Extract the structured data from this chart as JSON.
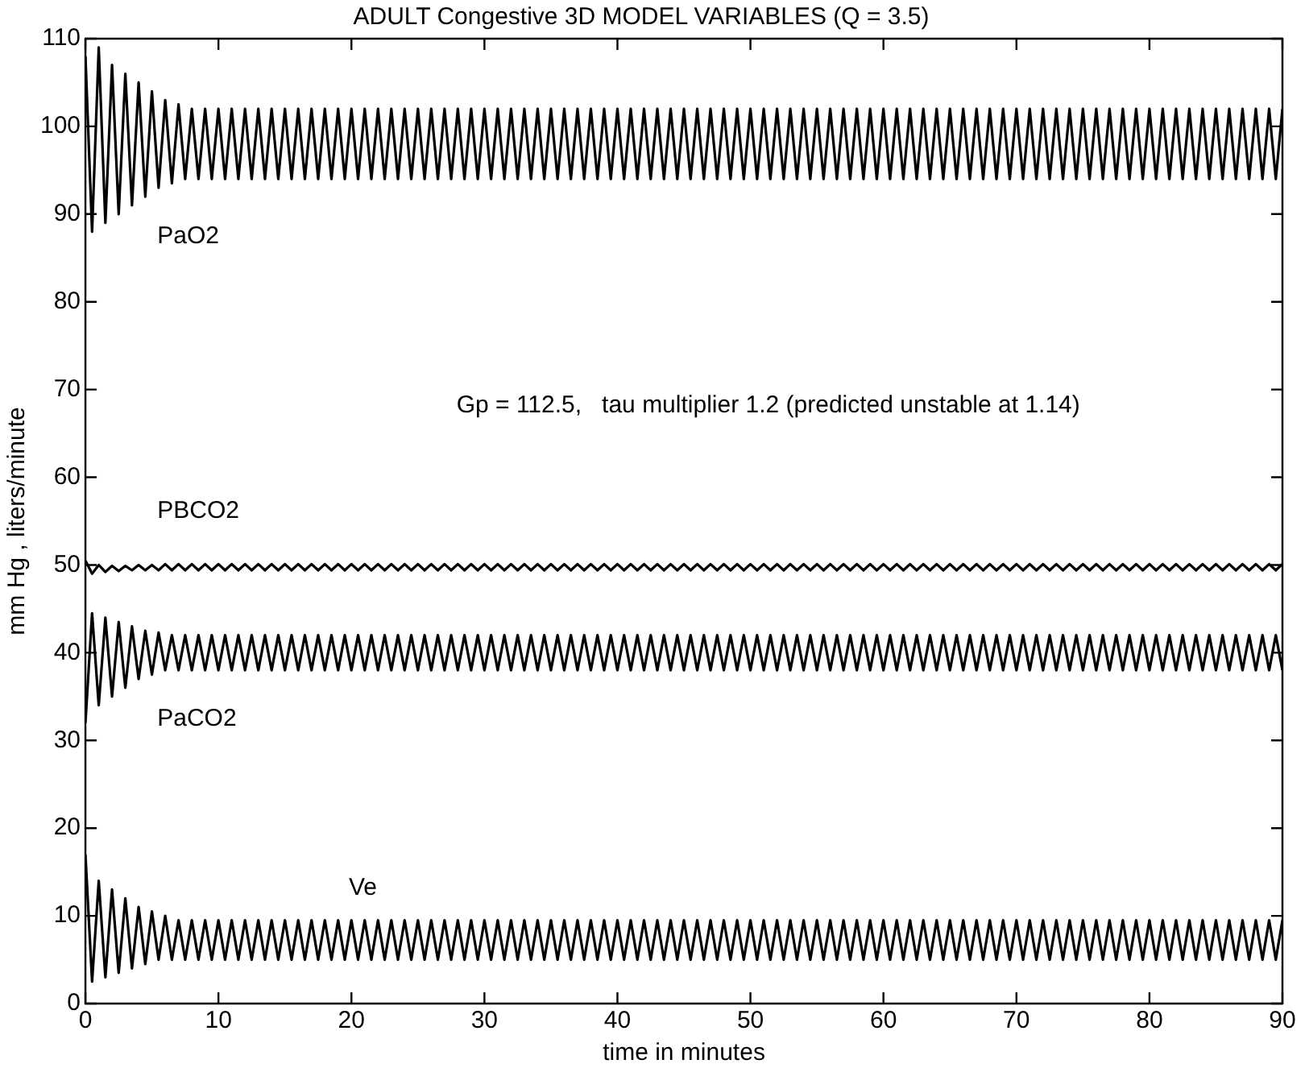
{
  "chart_data": {
    "type": "line",
    "title": "ADULT Congestive 3D MODEL VARIABLES (Q = 3.5)",
    "xlabel": "time in minutes",
    "ylabel": "mm Hg , liters/minute",
    "annotations": [
      "Gp = 112.5,   tau multiplier 1.2 (predicted unstable at 1.14)"
    ],
    "x": [
      0,
      0.5,
      1,
      1.5,
      2,
      2.5,
      3,
      3.5,
      4,
      4.5,
      5,
      5.5,
      6,
      6.5,
      7,
      7.5,
      8,
      8.5,
      9,
      9.5,
      10,
      10.5,
      11,
      11.5,
      12,
      12.5,
      13,
      13.5,
      14,
      14.5,
      15,
      15.5,
      16,
      16.5,
      17,
      17.5,
      18,
      18.5,
      19,
      19.5,
      20,
      20.5,
      21,
      21.5,
      22,
      22.5,
      23,
      23.5,
      24,
      24.5,
      25,
      25.5,
      26,
      26.5,
      27,
      27.5,
      28,
      28.5,
      29,
      29.5,
      30,
      30.5,
      31,
      31.5,
      32,
      32.5,
      33,
      33.5,
      34,
      34.5,
      35,
      35.5,
      36,
      36.5,
      37,
      37.5,
      38,
      38.5,
      39,
      39.5,
      40,
      40.5,
      41,
      41.5,
      42,
      42.5,
      43,
      43.5,
      44,
      44.5,
      45,
      45.5,
      46,
      46.5,
      47,
      47.5,
      48,
      48.5,
      49,
      49.5,
      50,
      50.5,
      51,
      51.5,
      52,
      52.5,
      53,
      53.5,
      54,
      54.5,
      55,
      55.5,
      56,
      56.5,
      57,
      57.5,
      58,
      58.5,
      59,
      59.5,
      60,
      60.5,
      61,
      61.5,
      62,
      62.5,
      63,
      63.5,
      64,
      64.5,
      65,
      65.5,
      66,
      66.5,
      67,
      67.5,
      68,
      68.5,
      69,
      69.5,
      70,
      70.5,
      71,
      71.5,
      72,
      72.5,
      73,
      73.5,
      74,
      74.5,
      75,
      75.5,
      76,
      76.5,
      77,
      77.5,
      78,
      78.5,
      79,
      79.5,
      80,
      80.5,
      81,
      81.5,
      82,
      82.5,
      83,
      83.5,
      84,
      84.5,
      85,
      85.5,
      86,
      86.5,
      87,
      87.5,
      88,
      88.5,
      89,
      89.5,
      90
    ],
    "series": [
      {
        "name": "PaO2",
        "color": "#000000",
        "values": [
          108,
          88,
          109,
          89,
          107,
          90,
          106,
          91,
          105,
          92,
          104,
          93,
          103,
          93.5,
          102.5,
          94,
          102,
          94,
          102,
          94,
          102,
          94,
          102,
          94,
          102,
          94,
          102,
          94,
          102,
          94,
          102,
          94,
          102,
          94,
          102,
          94,
          102,
          94,
          102,
          94,
          102,
          94,
          102,
          94,
          102,
          94,
          102,
          94,
          102,
          94,
          102,
          94,
          102,
          94,
          102,
          94,
          102,
          94,
          102,
          94,
          102,
          94,
          102,
          94,
          102,
          94,
          102,
          94,
          102,
          94,
          102,
          94,
          102,
          94,
          102,
          94,
          102,
          94,
          102,
          94,
          102,
          94,
          102,
          94,
          102,
          94,
          102,
          94,
          102,
          94,
          102,
          94,
          102,
          94,
          102,
          94,
          102,
          94,
          102,
          94,
          102,
          94,
          102,
          94,
          102,
          94,
          102,
          94,
          102,
          94,
          102,
          94,
          102,
          94,
          102,
          94,
          102,
          94,
          102,
          94,
          102,
          94,
          102,
          94,
          102,
          94,
          102,
          94,
          102,
          94,
          102,
          94,
          102,
          94,
          102,
          94,
          102,
          94,
          102,
          94,
          102,
          94,
          102,
          94,
          102,
          94,
          102,
          94,
          102,
          94,
          102,
          94,
          102,
          94,
          102,
          94,
          102,
          94,
          102,
          94,
          102,
          94,
          102,
          94,
          102,
          94,
          102,
          94,
          102,
          94,
          102,
          94,
          102,
          94,
          102,
          94,
          102,
          94,
          102,
          94,
          102
        ]
      },
      {
        "name": "PBCO2",
        "color": "#000000",
        "values": [
          50.5,
          49,
          50,
          49.2,
          49.9,
          49.3,
          49.9,
          49.4,
          50,
          49.4,
          50,
          49.4,
          50.1,
          49.4,
          50.1,
          49.4,
          50.1,
          49.4,
          50.1,
          49.4,
          50.1,
          49.4,
          50.1,
          49.4,
          50.1,
          49.4,
          50.1,
          49.4,
          50.1,
          49.4,
          50.1,
          49.4,
          50.1,
          49.4,
          50.1,
          49.4,
          50.1,
          49.4,
          50.1,
          49.4,
          50.1,
          49.4,
          50.1,
          49.4,
          50.1,
          49.4,
          50.1,
          49.4,
          50.1,
          49.4,
          50.1,
          49.4,
          50.1,
          49.4,
          50.1,
          49.4,
          50.1,
          49.4,
          50.1,
          49.4,
          50.1,
          49.4,
          50.1,
          49.4,
          50.1,
          49.4,
          50.1,
          49.4,
          50.1,
          49.4,
          50.1,
          49.4,
          50.1,
          49.4,
          50.1,
          49.4,
          50.1,
          49.4,
          50.1,
          49.4,
          50.1,
          49.4,
          50.1,
          49.4,
          50.1,
          49.4,
          50.1,
          49.4,
          50.1,
          49.4,
          50.1,
          49.4,
          50.1,
          49.4,
          50.1,
          49.4,
          50.1,
          49.4,
          50.1,
          49.4,
          50.1,
          49.4,
          50.1,
          49.4,
          50.1,
          49.4,
          50.1,
          49.4,
          50.1,
          49.4,
          50.1,
          49.4,
          50.1,
          49.4,
          50.1,
          49.4,
          50.1,
          49.4,
          50.1,
          49.4,
          50.1,
          49.4,
          50.1,
          49.4,
          50.1,
          49.4,
          50.1,
          49.4,
          50.1,
          49.4,
          50.1,
          49.4,
          50.1,
          49.4,
          50.1,
          49.4,
          50.1,
          49.4,
          50.1,
          49.4,
          50.1,
          49.4,
          50.1,
          49.4,
          50.1,
          49.4,
          50.1,
          49.4,
          50.1,
          49.4,
          50.1,
          49.4,
          50.1,
          49.4,
          50.1,
          49.4,
          50.1,
          49.4,
          50.1,
          49.4,
          50.1,
          49.4,
          50.1,
          49.4,
          50.1,
          49.4,
          50.1,
          49.4,
          50.1,
          49.4,
          50.1,
          49.4,
          50.1,
          49.4,
          50.1,
          49.4,
          50.1,
          49.4,
          50.1,
          49.4,
          50.1
        ]
      },
      {
        "name": "PaCO2",
        "color": "#000000",
        "values": [
          32,
          44.5,
          34,
          44,
          35,
          43.5,
          36,
          43,
          37,
          42.5,
          37.5,
          42.3,
          38,
          42,
          38,
          42,
          38,
          42,
          38,
          42,
          38,
          42,
          38,
          42,
          38,
          42,
          38,
          42,
          38,
          42,
          38,
          42,
          38,
          42,
          38,
          42,
          38,
          42,
          38,
          42,
          38,
          42,
          38,
          42,
          38,
          42,
          38,
          42,
          38,
          42,
          38,
          42,
          38,
          42,
          38,
          42,
          38,
          42,
          38,
          42,
          38,
          42,
          38,
          42,
          38,
          42,
          38,
          42,
          38,
          42,
          38,
          42,
          38,
          42,
          38,
          42,
          38,
          42,
          38,
          42,
          38,
          42,
          38,
          42,
          38,
          42,
          38,
          42,
          38,
          42,
          38,
          42,
          38,
          42,
          38,
          42,
          38,
          42,
          38,
          42,
          38,
          42,
          38,
          42,
          38,
          42,
          38,
          42,
          38,
          42,
          38,
          42,
          38,
          42,
          38,
          42,
          38,
          42,
          38,
          42,
          38,
          42,
          38,
          42,
          38,
          42,
          38,
          42,
          38,
          42,
          38,
          42,
          38,
          42,
          38,
          42,
          38,
          42,
          38,
          42,
          38,
          42,
          38,
          42,
          38,
          42,
          38,
          42,
          38,
          42,
          38,
          42,
          38,
          42,
          38,
          42,
          38,
          42,
          38,
          42,
          38,
          42,
          38,
          42,
          38,
          42,
          38,
          42,
          38,
          42,
          38,
          42,
          38,
          42,
          38,
          42,
          38,
          42,
          38,
          42,
          38
        ]
      },
      {
        "name": "Ve",
        "color": "#000000",
        "values": [
          17,
          2.5,
          14,
          3,
          13,
          3.5,
          12,
          4,
          11,
          4.5,
          10.5,
          5,
          10,
          5,
          9.5,
          5,
          9.5,
          5,
          9.5,
          5,
          9.5,
          5,
          9.5,
          5,
          9.5,
          5,
          9.5,
          5,
          9.5,
          5,
          9.5,
          5,
          9.5,
          5,
          9.5,
          5,
          9.5,
          5,
          9.5,
          5,
          9.5,
          5,
          9.5,
          5,
          9.5,
          5,
          9.5,
          5,
          9.5,
          5,
          9.5,
          5,
          9.5,
          5,
          9.5,
          5,
          9.5,
          5,
          9.5,
          5,
          9.5,
          5,
          9.5,
          5,
          9.5,
          5,
          9.5,
          5,
          9.5,
          5,
          9.5,
          5,
          9.5,
          5,
          9.5,
          5,
          9.5,
          5,
          9.5,
          5,
          9.5,
          5,
          9.5,
          5,
          9.5,
          5,
          9.5,
          5,
          9.5,
          5,
          9.5,
          5,
          9.5,
          5,
          9.5,
          5,
          9.5,
          5,
          9.5,
          5,
          9.5,
          5,
          9.5,
          5,
          9.5,
          5,
          9.5,
          5,
          9.5,
          5,
          9.5,
          5,
          9.5,
          5,
          9.5,
          5,
          9.5,
          5,
          9.5,
          5,
          9.5,
          5,
          9.5,
          5,
          9.5,
          5,
          9.5,
          5,
          9.5,
          5,
          9.5,
          5,
          9.5,
          5,
          9.5,
          5,
          9.5,
          5,
          9.5,
          5,
          9.5,
          5,
          9.5,
          5,
          9.5,
          5,
          9.5,
          5,
          9.5,
          5,
          9.5,
          5,
          9.5,
          5,
          9.5,
          5,
          9.5,
          5,
          9.5,
          5,
          9.5,
          5,
          9.5,
          5,
          9.5,
          5,
          9.5,
          5,
          9.5,
          5,
          9.5,
          5,
          9.5,
          5,
          9.5,
          5,
          9.5,
          5,
          9.5,
          5,
          9.5
        ]
      }
    ],
    "xlim": [
      0,
      90
    ],
    "xticks": [
      0,
      10,
      20,
      30,
      40,
      50,
      60,
      70,
      80,
      90
    ],
    "ylim": [
      0,
      110
    ],
    "yticks": [
      0,
      10,
      20,
      30,
      40,
      50,
      60,
      70,
      80,
      90,
      100,
      110
    ]
  }
}
